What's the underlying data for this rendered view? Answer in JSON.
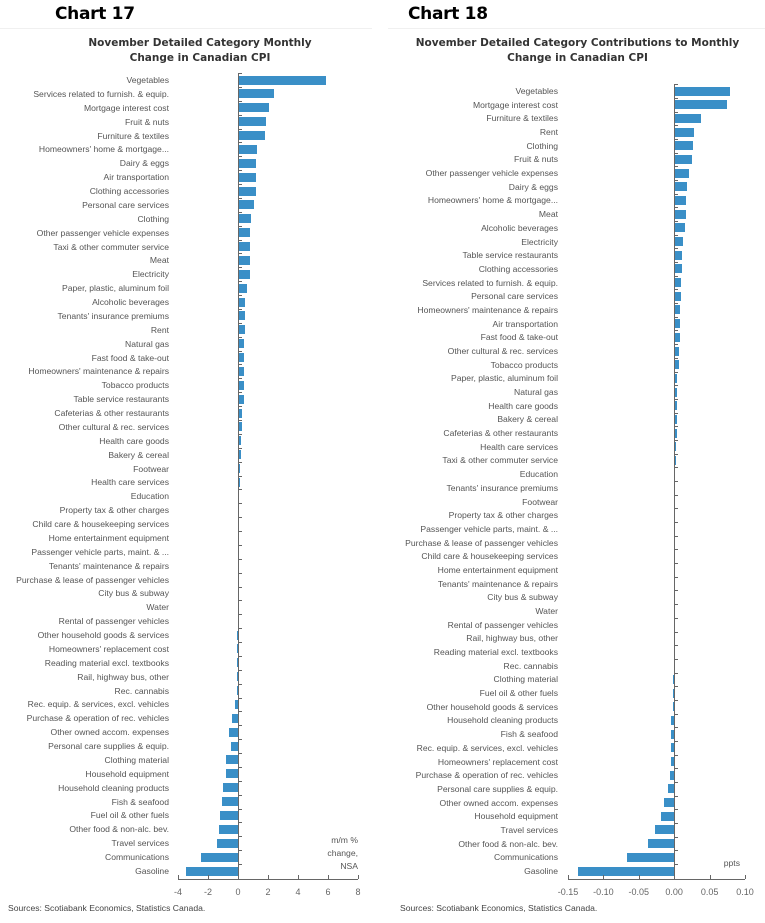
{
  "chart_data": [
    {
      "type": "bar",
      "orientation": "horizontal",
      "chart_number": "Chart 17",
      "title": "November Detailed Category Monthly Change in Canadian CPI",
      "title_lines": [
        "November Detailed Category Monthly",
        "Change in Canadian CPI"
      ],
      "xlabel": "m/m % change, NSA",
      "unit_lines": [
        "m/m %",
        "change,",
        "NSA"
      ],
      "xlim": [
        -4,
        8
      ],
      "xticks": [
        "-4",
        "-2",
        "0",
        "2",
        "4",
        "6",
        "8"
      ],
      "grid": false,
      "source": "Sources: Scotiabank Economics, Statistics Canada.",
      "categories": [
        "Vegetables",
        "Services related to furnish. & equip.",
        "Mortgage interest cost",
        "Fruit & nuts",
        "Furniture & textiles",
        "Homeowners' home & mortgage...",
        "Dairy & eggs",
        "Air transportation",
        "Clothing accessories",
        "Personal care services",
        "Clothing",
        "Other passenger vehicle expenses",
        "Taxi & other commuter service",
        "Meat",
        "Electricity",
        "Paper, plastic, aluminum foil",
        "Alcoholic beverages",
        "Tenants' insurance premiums",
        "Rent",
        "Natural gas",
        "Fast food & take-out",
        "Homeowners' maintenance & repairs",
        "Tobacco products",
        "Table service restaurants",
        "Cafeterias & other restaurants",
        "Other cultural & rec. services",
        "Health care goods",
        "Bakery & cereal",
        "Footwear",
        "Health care services",
        "Education",
        "Property tax & other charges",
        "Child care & housekeeping services",
        "Home entertainment equipment",
        "Passenger vehicle parts, maint. & ...",
        "Tenants' maintenance & repairs",
        "Purchase & lease of passenger vehicles",
        "City bus & subway",
        "Water",
        "Rental of passenger vehicles",
        "Other household goods & services",
        "Homeowners' replacement cost",
        "Reading material excl. textbooks",
        "Rail, highway bus, other",
        "Rec. cannabis",
        "Rec. equip. & services, excl. vehicles",
        "Purchase & operation of rec. vehicles",
        "Other owned accom. expenses",
        "Personal care supplies & equip.",
        "Clothing material",
        "Household equipment",
        "Household cleaning products",
        "Fish & seafood",
        "Fuel oil & other fuels",
        "Other food & non-alc. bev.",
        "Travel services",
        "Communications",
        "Gasoline"
      ],
      "values": [
        5.8,
        2.3,
        2.0,
        1.8,
        1.7,
        1.2,
        1.1,
        1.1,
        1.1,
        1.0,
        0.8,
        0.7,
        0.7,
        0.7,
        0.7,
        0.5,
        0.4,
        0.4,
        0.4,
        0.3,
        0.3,
        0.3,
        0.3,
        0.3,
        0.2,
        0.2,
        0.1,
        0.1,
        0.05,
        0.05,
        0.0,
        0.0,
        0.0,
        0.0,
        0.0,
        0.0,
        0.0,
        0.0,
        0.0,
        0.0,
        -0.05,
        -0.1,
        -0.1,
        -0.1,
        -0.1,
        -0.2,
        -0.4,
        -0.6,
        -0.5,
        -0.8,
        -0.8,
        -1.0,
        -1.1,
        -1.2,
        -1.3,
        -1.4,
        -2.5,
        -3.5
      ]
    },
    {
      "type": "bar",
      "orientation": "horizontal",
      "chart_number": "Chart 18",
      "title": "November Detailed Category Contributions to Monthly Change in Canadian CPI",
      "title_lines": [
        "November Detailed Category Contributions to Monthly",
        "Change in Canadian CPI"
      ],
      "xlabel": "ppts",
      "unit_lines": [
        "ppts"
      ],
      "xlim": [
        -0.15,
        0.1
      ],
      "xticks": [
        "-0.15",
        "-0.10",
        "-0.05",
        "0.00",
        "0.05",
        "0.10"
      ],
      "grid": false,
      "source": "Sources: Scotiabank Economics, Statistics Canada.",
      "categories": [
        "Vegetables",
        "Mortgage interest cost",
        "Furniture & textiles",
        "Rent",
        "Clothing",
        "Fruit & nuts",
        "Other passenger vehicle expenses",
        "Dairy & eggs",
        "Homeowners' home & mortgage...",
        "Meat",
        "Alcoholic beverages",
        "Electricity",
        "Table service restaurants",
        "Clothing accessories",
        "Services related to furnish. & equip.",
        "Personal care services",
        "Homeowners' maintenance & repairs",
        "Air transportation",
        "Fast food & take-out",
        "Other cultural & rec. services",
        "Tobacco products",
        "Paper, plastic, aluminum foil",
        "Natural gas",
        "Health care goods",
        "Bakery & cereal",
        "Cafeterias & other restaurants",
        "Health care services",
        "Taxi & other commuter service",
        "Education",
        "Tenants' insurance premiums",
        "Footwear",
        "Property tax & other charges",
        "Passenger vehicle parts, maint. & ...",
        "Purchase & lease of passenger vehicles",
        "Child care & housekeeping services",
        "Home entertainment equipment",
        "Tenants' maintenance & repairs",
        "City bus & subway",
        "Water",
        "Rental of passenger vehicles",
        "Rail, highway bus, other",
        "Reading material excl. textbooks",
        "Rec. cannabis",
        "Clothing material",
        "Fuel oil & other fuels",
        "Other household goods & services",
        "Household cleaning products",
        "Fish & seafood",
        "Rec. equip. & services, excl. vehicles",
        "Homeowners' replacement cost",
        "Purchase & operation of rec. vehicles",
        "Personal care supplies & equip.",
        "Other owned accom. expenses",
        "Household equipment",
        "Travel services",
        "Other food & non-alc. bev.",
        "Communications",
        "Gasoline"
      ],
      "values": [
        0.077,
        0.073,
        0.036,
        0.027,
        0.025,
        0.024,
        0.02,
        0.016,
        0.015,
        0.015,
        0.014,
        0.011,
        0.01,
        0.009,
        0.008,
        0.008,
        0.007,
        0.007,
        0.007,
        0.005,
        0.005,
        0.003,
        0.003,
        0.003,
        0.002,
        0.002,
        0.001,
        0.001,
        0.0,
        0.0,
        0.0,
        0.0,
        0.0,
        0.0,
        0.0,
        0.0,
        0.0,
        0.0,
        0.0,
        0.0,
        0.0,
        0.0,
        0.0,
        -0.001,
        -0.002,
        -0.002,
        -0.004,
        -0.004,
        -0.004,
        -0.005,
        -0.006,
        -0.009,
        -0.014,
        -0.018,
        -0.027,
        -0.037,
        -0.067,
        -0.136
      ]
    }
  ]
}
